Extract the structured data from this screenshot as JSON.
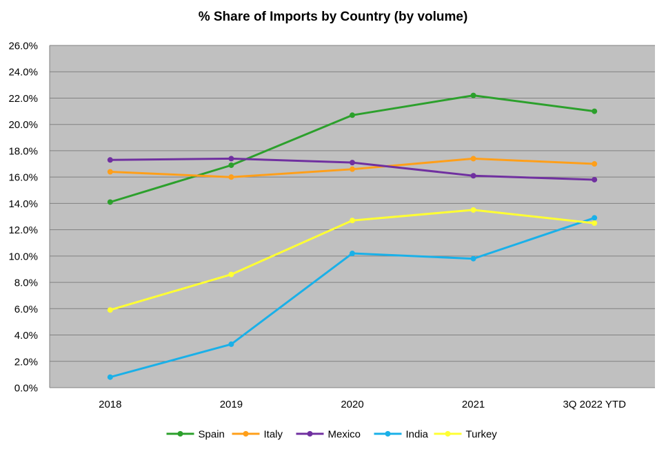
{
  "chart_data": {
    "type": "line",
    "title": "% Share of Imports by Country (by volume)",
    "xlabel": "",
    "ylabel": "",
    "categories": [
      "2018",
      "2019",
      "2020",
      "2021",
      "3Q 2022 YTD"
    ],
    "ylim": [
      0,
      26
    ],
    "y_tick_step": 2,
    "y_tick_labels": [
      "0.0%",
      "2.0%",
      "4.0%",
      "6.0%",
      "8.0%",
      "10.0%",
      "12.0%",
      "14.0%",
      "16.0%",
      "18.0%",
      "20.0%",
      "22.0%",
      "24.0%",
      "26.0%"
    ],
    "grid": true,
    "plot_background": "#c0c0c0",
    "grid_color": "#808080",
    "legend_position": "bottom",
    "series": [
      {
        "name": "Spain",
        "color": "#2ca02c",
        "values": [
          14.1,
          16.9,
          20.7,
          22.2,
          21.0
        ]
      },
      {
        "name": "Italy",
        "color": "#ff9f1a",
        "values": [
          16.4,
          16.0,
          16.6,
          17.4,
          17.0
        ]
      },
      {
        "name": "Mexico",
        "color": "#7030a0",
        "values": [
          17.3,
          17.4,
          17.1,
          16.1,
          15.8
        ]
      },
      {
        "name": "India",
        "color": "#1ab0e8",
        "values": [
          0.8,
          3.3,
          10.2,
          9.8,
          12.9
        ]
      },
      {
        "name": "Turkey",
        "color": "#ffff33",
        "values": [
          5.9,
          8.6,
          12.7,
          13.5,
          12.5
        ]
      }
    ]
  }
}
